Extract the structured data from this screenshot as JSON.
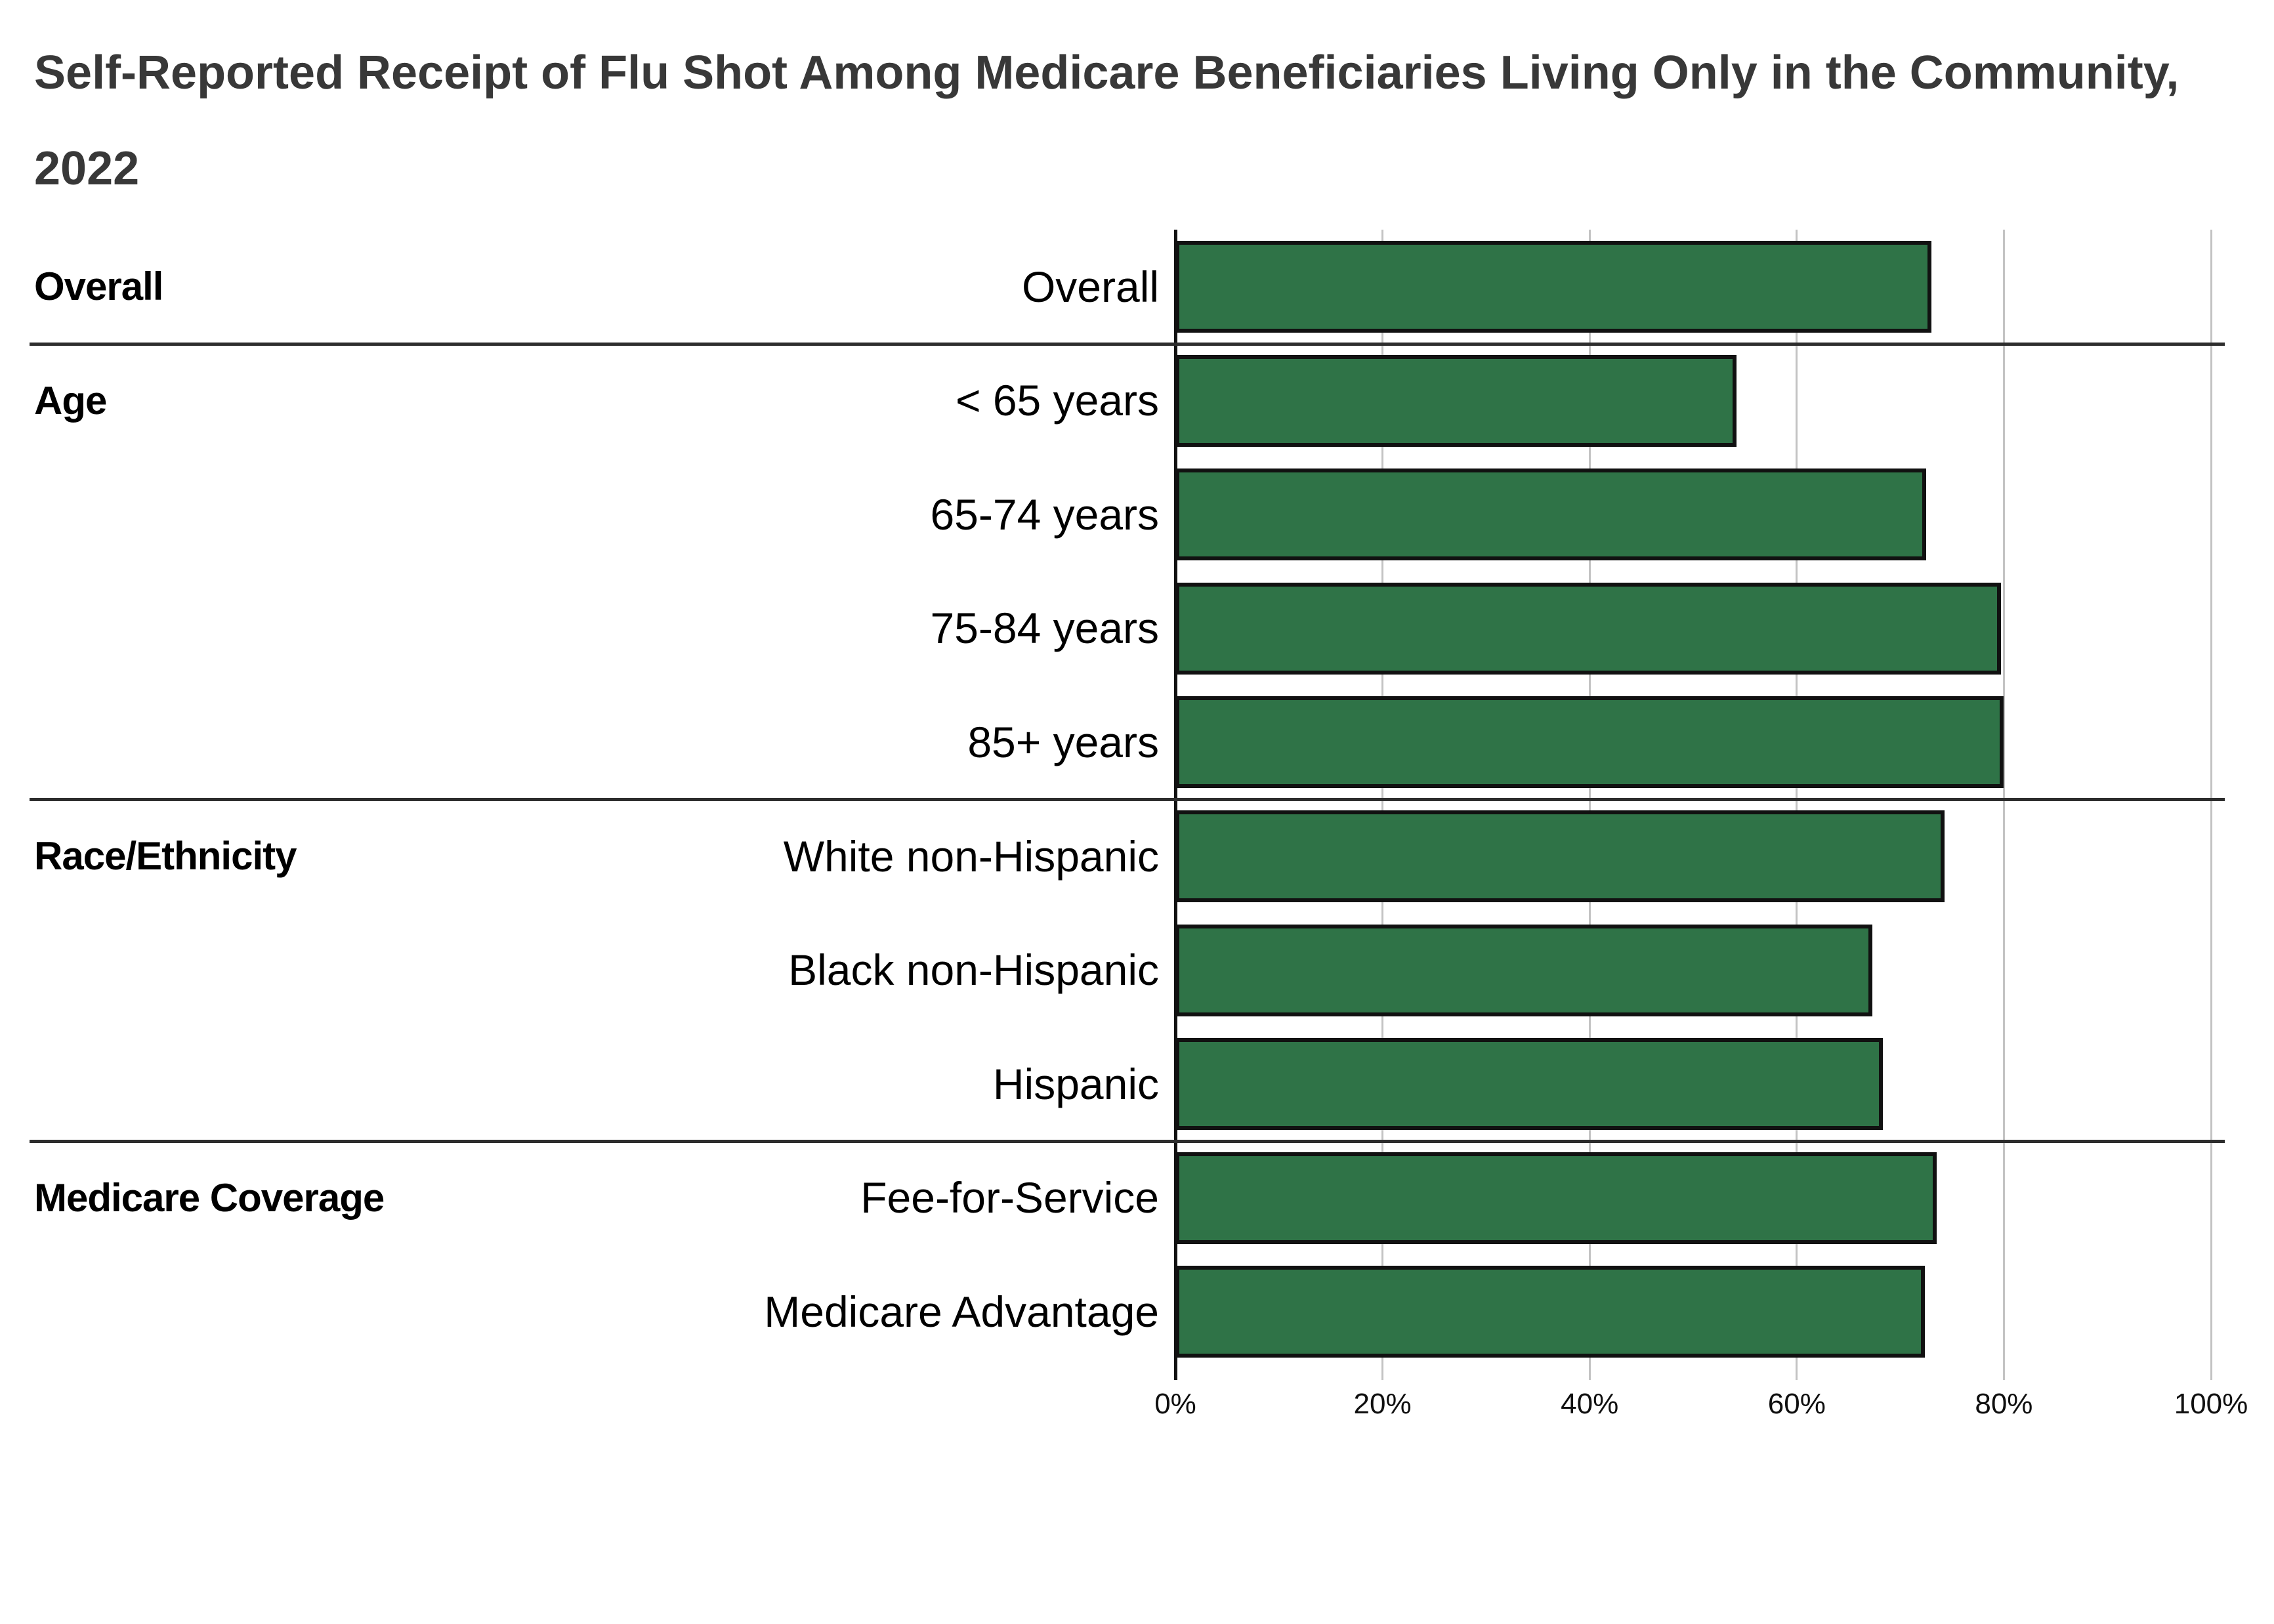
{
  "title": "Self-Reported Receipt of Flu Shot Among Medicare Beneficiaries Living Only in the Community, 2022",
  "chart_data": {
    "type": "bar",
    "orientation": "horizontal",
    "title": "Self-Reported Receipt of Flu Shot Among Medicare Beneficiaries Living Only in the Community, 2022",
    "unit": "%",
    "x_axis": {
      "range": [
        0,
        100
      ],
      "tick_step": 20,
      "tick_labels": [
        "0%",
        "20%",
        "40%",
        "60%",
        "80%",
        "100%"
      ]
    },
    "grid": "vertical",
    "legend": "none",
    "bar_color": "#2F7347",
    "bar_border_color": "#111111",
    "gridline_color": "#c3c3c3",
    "groups": [
      {
        "label": "Overall",
        "rows": [
          {
            "label": "Overall",
            "value": 73.0
          }
        ]
      },
      {
        "label": "Age",
        "rows": [
          {
            "label": "< 65 years",
            "value": 54.2
          },
          {
            "label": "65-74 years",
            "value": 72.5
          },
          {
            "label": "75-84 years",
            "value": 79.7
          },
          {
            "label": "85+ years",
            "value": 80.0
          }
        ]
      },
      {
        "label": "Race/Ethnicity",
        "rows": [
          {
            "label": "White non-Hispanic",
            "value": 74.3
          },
          {
            "label": "Black non-Hispanic",
            "value": 67.3
          },
          {
            "label": "Hispanic",
            "value": 68.3
          }
        ]
      },
      {
        "label": "Medicare Coverage",
        "rows": [
          {
            "label": "Fee-for-Service",
            "value": 73.5
          },
          {
            "label": "Medicare Advantage",
            "value": 72.4
          }
        ]
      }
    ]
  }
}
